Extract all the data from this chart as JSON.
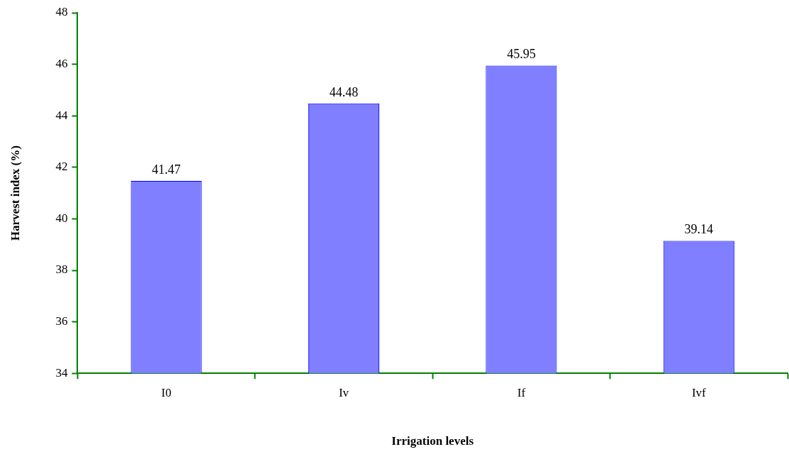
{
  "chart_data": {
    "type": "bar",
    "xlabel": "Irrigation levels",
    "ylabel": "Harvest index (%)",
    "categories": [
      "I0",
      "Iv",
      "If",
      "Ivf"
    ],
    "values": [
      41.47,
      44.48,
      45.95,
      39.14
    ],
    "color": "#7f7fff",
    "ylim": [
      34,
      48
    ],
    "yticks": [
      34,
      36,
      38,
      40,
      42,
      44,
      46,
      48
    ],
    "data_labels": true
  }
}
